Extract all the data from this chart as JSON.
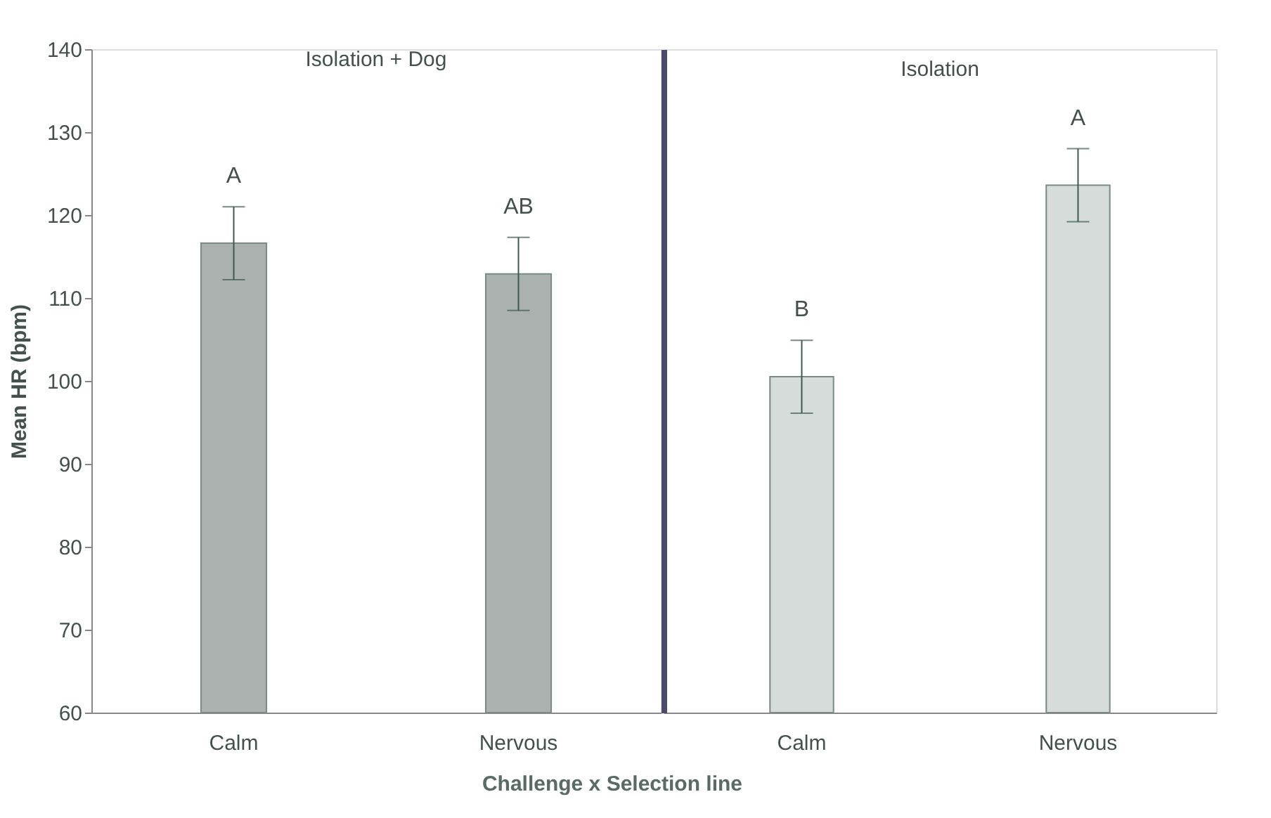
{
  "chart_data": [
    {
      "type": "bar",
      "title": "Isolation + Dog",
      "categories": [
        "Calm",
        "Nervous"
      ],
      "values": [
        116.6,
        112.9
      ],
      "errors": [
        4.4,
        4.4
      ],
      "colors": [
        "#aab1ae",
        "#aab1ae"
      ],
      "ylim": [
        60,
        140
      ],
      "yticks": [
        60,
        70,
        80,
        90,
        100,
        110,
        120,
        130,
        140
      ],
      "ylabel": "Mean HR (bpm)",
      "xlabel": "Challenge x Selection line",
      "grid": false,
      "annotations": [
        "A",
        "AB"
      ]
    },
    {
      "type": "bar",
      "title": "Isolation",
      "categories": [
        "Calm",
        "Nervous"
      ],
      "values": [
        100.5,
        123.6
      ],
      "errors": [
        4.4,
        4.4
      ],
      "colors": [
        "#d5dcd9",
        "#d5dcd9"
      ],
      "ylim": [
        60,
        140
      ],
      "grid": false,
      "tick_labels": "x",
      "annotations": [
        "B",
        "A"
      ]
    }
  ]
}
